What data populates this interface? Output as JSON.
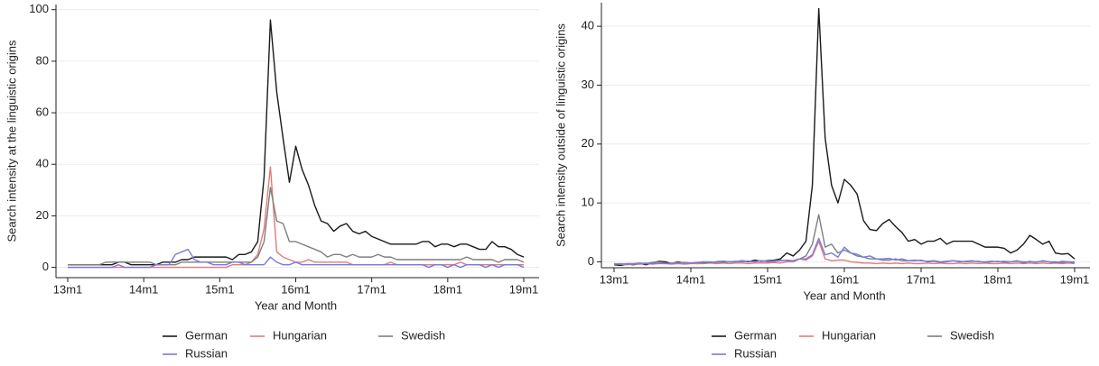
{
  "chart_data": [
    {
      "type": "line",
      "xlabel": "Year and Month",
      "ylabel": "Search intensity at the linguistic origins",
      "categories": [
        "13m1",
        null,
        null,
        null,
        null,
        null,
        null,
        null,
        null,
        null,
        null,
        null,
        "14m1",
        null,
        null,
        null,
        null,
        null,
        null,
        null,
        null,
        null,
        null,
        null,
        "15m1",
        null,
        null,
        null,
        null,
        null,
        null,
        null,
        null,
        null,
        null,
        null,
        "16m1",
        null,
        null,
        null,
        null,
        null,
        null,
        null,
        null,
        null,
        null,
        null,
        "17m1",
        null,
        null,
        null,
        null,
        null,
        null,
        null,
        null,
        null,
        null,
        null,
        "18m1",
        null,
        null,
        null,
        null,
        null,
        null,
        null,
        null,
        null,
        null,
        null,
        "19m1"
      ],
      "ylim": [
        -4,
        102
      ],
      "yticks": [
        0,
        20,
        40,
        60,
        80,
        100
      ],
      "grid": true,
      "legend": "bottom",
      "series": [
        {
          "name": "German",
          "color": "#1a1a1a",
          "values": [
            1,
            1,
            1,
            1,
            1,
            1,
            1,
            1,
            2,
            2,
            1,
            1,
            1,
            1,
            1,
            2,
            2,
            2,
            3,
            3,
            4,
            4,
            4,
            4,
            4,
            4,
            3,
            5,
            5,
            6,
            10,
            35,
            96,
            68,
            50,
            33,
            47,
            38,
            32,
            24,
            18,
            17,
            14,
            16,
            17,
            14,
            13,
            14,
            12,
            11,
            10,
            9,
            9,
            9,
            9,
            9,
            10,
            10,
            8,
            9,
            9,
            8,
            9,
            9,
            8,
            7,
            7,
            10,
            8,
            8,
            7,
            5,
            4
          ]
        },
        {
          "name": "Hungarian",
          "color": "#e07b7b",
          "values": [
            0,
            0,
            0,
            0,
            0,
            0,
            0,
            0,
            0,
            0,
            0,
            0,
            0,
            0,
            0,
            0,
            0,
            0,
            0,
            0,
            0,
            0,
            0,
            0,
            0,
            0,
            1,
            1,
            1,
            2,
            5,
            15,
            39,
            6,
            4,
            3,
            2,
            2,
            3,
            2,
            2,
            2,
            2,
            2,
            2,
            1,
            1,
            1,
            1,
            1,
            1,
            2,
            1,
            1,
            1,
            1,
            1,
            1,
            1,
            1,
            1,
            1,
            2,
            1,
            1,
            1,
            1,
            1,
            1,
            1,
            1,
            1,
            1
          ]
        },
        {
          "name": "Swedish",
          "color": "#7f7f7f",
          "values": [
            1,
            1,
            1,
            1,
            1,
            1,
            2,
            2,
            2,
            2,
            2,
            2,
            2,
            2,
            1,
            1,
            1,
            1,
            2,
            2,
            2,
            2,
            2,
            2,
            2,
            2,
            2,
            2,
            2,
            2,
            4,
            10,
            31,
            18,
            17,
            10,
            10,
            9,
            8,
            7,
            6,
            4,
            5,
            5,
            4,
            5,
            4,
            4,
            4,
            5,
            4,
            4,
            3,
            3,
            3,
            3,
            3,
            3,
            3,
            3,
            3,
            3,
            3,
            4,
            3,
            3,
            3,
            3,
            2,
            3,
            3,
            3,
            2
          ]
        },
        {
          "name": "Russian",
          "color": "#7a7ae0",
          "values": [
            0,
            0,
            0,
            0,
            0,
            0,
            0,
            0,
            1,
            0,
            0,
            0,
            0,
            0,
            1,
            1,
            1,
            5,
            6,
            7,
            3,
            2,
            2,
            1,
            1,
            1,
            2,
            2,
            1,
            1,
            1,
            1,
            4,
            2,
            1,
            1,
            2,
            1,
            1,
            1,
            1,
            1,
            1,
            1,
            1,
            1,
            1,
            1,
            1,
            1,
            1,
            1,
            1,
            1,
            1,
            1,
            1,
            0,
            1,
            1,
            0,
            1,
            0,
            1,
            1,
            1,
            0,
            1,
            0,
            1,
            1,
            1,
            0
          ]
        }
      ]
    },
    {
      "type": "line",
      "xlabel": "Year and Month",
      "ylabel": "Search intensity outside of linguistic origins",
      "categories": [
        "13m1",
        null,
        null,
        null,
        null,
        null,
        null,
        null,
        null,
        null,
        null,
        null,
        "14m1",
        null,
        null,
        null,
        null,
        null,
        null,
        null,
        null,
        null,
        null,
        null,
        "15m1",
        null,
        null,
        null,
        null,
        null,
        null,
        null,
        null,
        null,
        null,
        null,
        "16m1",
        null,
        null,
        null,
        null,
        null,
        null,
        null,
        null,
        null,
        null,
        null,
        "17m1",
        null,
        null,
        null,
        null,
        null,
        null,
        null,
        null,
        null,
        null,
        null,
        "18m1",
        null,
        null,
        null,
        null,
        null,
        null,
        null,
        null,
        null,
        null,
        null,
        "19m1"
      ],
      "ylim": [
        -1,
        44
      ],
      "yticks": [
        0,
        10,
        20,
        30,
        40
      ],
      "grid": true,
      "legend": "bottom",
      "series": [
        {
          "name": "German",
          "color": "#1a1a1a",
          "values": [
            -0.5,
            -0.6,
            -0.4,
            -0.5,
            -0.3,
            -0.5,
            -0.2,
            0.1,
            0,
            -0.3,
            0,
            -0.2,
            -0.2,
            -0.3,
            0,
            -0.2,
            0,
            0.1,
            0,
            0,
            0.2,
            0,
            0.3,
            0.1,
            0.2,
            0.3,
            0.5,
            1.5,
            1,
            2,
            3.5,
            13,
            43,
            21,
            13,
            10,
            14,
            13,
            11.5,
            7,
            5.5,
            5.3,
            6.5,
            7.2,
            6,
            5,
            3.5,
            3.8,
            3,
            3.5,
            3.5,
            4,
            3,
            3.5,
            3.5,
            3.5,
            3.5,
            3,
            2.5,
            2.5,
            2.5,
            2.3,
            1.5,
            2,
            3,
            4.5,
            3.8,
            3,
            3.5,
            1.5,
            1.3,
            1.4,
            0.5
          ]
        },
        {
          "name": "Hungarian",
          "color": "#e07b7b",
          "values": [
            -0.4,
            -0.4,
            -0.5,
            -0.4,
            -0.4,
            -0.3,
            -0.4,
            -0.3,
            -0.3,
            -0.4,
            -0.3,
            -0.4,
            -0.3,
            -0.3,
            -0.3,
            -0.2,
            -0.3,
            -0.2,
            -0.3,
            -0.2,
            -0.2,
            -0.3,
            -0.2,
            -0.2,
            -0.2,
            -0.1,
            -0.2,
            0,
            0,
            0.5,
            0.3,
            1,
            3.5,
            0.5,
            0.2,
            0.3,
            0.3,
            0,
            -0.1,
            -0.2,
            -0.2,
            -0.3,
            -0.2,
            -0.3,
            -0.2,
            -0.3,
            -0.2,
            -0.3,
            -0.3,
            -0.2,
            -0.3,
            -0.2,
            -0.3,
            -0.3,
            -0.2,
            -0.3,
            -0.2,
            -0.3,
            -0.2,
            -0.3,
            -0.3,
            -0.2,
            -0.3,
            -0.2,
            -0.3,
            -0.2,
            -0.3,
            -0.2,
            -0.3,
            -0.2,
            -0.3,
            -0.2,
            -0.3
          ]
        },
        {
          "name": "Swedish",
          "color": "#7f7f7f",
          "values": [
            -0.3,
            -0.4,
            -0.3,
            -0.3,
            -0.2,
            -0.3,
            -0.1,
            0,
            -0.2,
            -0.3,
            -0.1,
            -0.2,
            -0.2,
            -0.1,
            -0.2,
            -0.1,
            0,
            -0.1,
            0,
            0.1,
            0,
            0.1,
            0,
            0.2,
            0,
            0.1,
            0.2,
            0.3,
            0.2,
            0.5,
            1,
            3,
            8,
            2.5,
            3,
            1.5,
            2,
            1.5,
            1,
            0.8,
            0.5,
            0.5,
            0.3,
            0.3,
            0.5,
            0.2,
            0.2,
            0.3,
            0.2,
            0.1,
            0.2,
            0,
            0.1,
            0.2,
            0,
            0.1,
            0.2,
            0,
            0,
            0.1,
            0,
            0.1,
            0,
            0.1,
            0,
            0,
            0,
            0.1,
            0,
            0,
            -0.1,
            0,
            0
          ]
        },
        {
          "name": "Russian",
          "color": "#7a7ae0",
          "values": [
            -0.4,
            -0.3,
            -0.4,
            -0.4,
            -0.3,
            -0.2,
            -0.3,
            -0.2,
            -0.3,
            -0.2,
            -0.2,
            -0.1,
            -0.2,
            -0.1,
            0,
            0,
            -0.1,
            0.1,
            0,
            0,
            0.2,
            0.1,
            0,
            0.2,
            0.1,
            0.2,
            0.3,
            0.2,
            0.2,
            0.5,
            0.5,
            1.2,
            4,
            1.2,
            1.5,
            0.8,
            2.5,
            1.5,
            1.3,
            0.8,
            1,
            0.5,
            0.5,
            0.6,
            0.3,
            0.5,
            0.2,
            0.2,
            0.3,
            0,
            0.1,
            -0.1,
            0,
            0.2,
            0.1,
            0,
            0.1,
            0.1,
            -0.1,
            0,
            0.1,
            -0.1,
            0,
            0.2,
            -0.2,
            0.1,
            -0.1,
            0.2,
            0,
            -0.2,
            0.1,
            0,
            -0.2
          ]
        }
      ]
    }
  ]
}
